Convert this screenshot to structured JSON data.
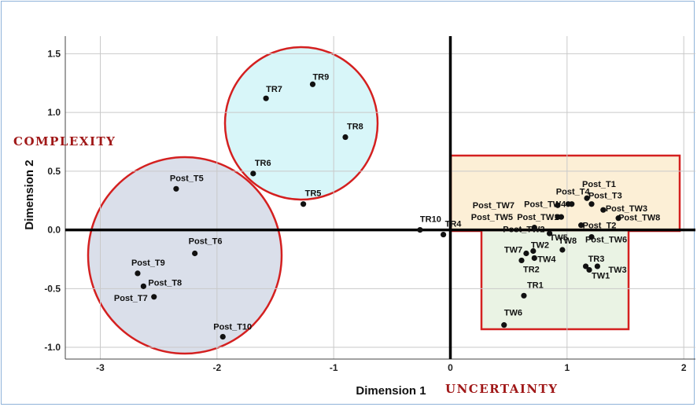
{
  "chart_data": {
    "type": "scatter",
    "title": "",
    "xlabel": "Dimension 1",
    "ylabel": "Dimension 2",
    "xlim": [
      -3.3,
      2.1
    ],
    "ylim": [
      -1.1,
      1.65
    ],
    "x_ticks": [
      "-3",
      "-2",
      "-1",
      "0",
      "1",
      "2"
    ],
    "y_ticks": [
      "1.5",
      "1.0",
      "0.5",
      "0.0",
      "-0.5",
      "-1.0"
    ],
    "x_tick_values": [
      -3,
      -2,
      -1,
      0,
      1,
      2
    ],
    "y_tick_values": [
      1.5,
      1.0,
      0.5,
      0.0,
      -0.5,
      -1.0
    ],
    "grid": true,
    "annotations": {
      "x_axis": "UNCERTAINTY",
      "y_axis": "COMPLEXITY",
      "color": "#a01818"
    },
    "colors": {
      "highlight_outline": "#d42020",
      "circle_cyan_fill": "#d8f6f9",
      "circle_lavender_fill": "#dadfea",
      "rect_orange_fill": "#fcefd6",
      "rect_green_fill": "#eaf3e4"
    },
    "points": [
      {
        "label": "TR9",
        "x": -1.18,
        "y": 1.24
      },
      {
        "label": "TR7",
        "x": -1.58,
        "y": 1.12
      },
      {
        "label": "TR8",
        "x": -0.9,
        "y": 0.79
      },
      {
        "label": "TR6",
        "x": -1.69,
        "y": 0.48
      },
      {
        "label": "TR5",
        "x": -1.26,
        "y": 0.22
      },
      {
        "label": "Post_T5",
        "x": -2.35,
        "y": 0.35
      },
      {
        "label": "Post_T6",
        "x": -2.19,
        "y": -0.2
      },
      {
        "label": "Post_T9",
        "x": -2.68,
        "y": -0.37
      },
      {
        "label": "Post_T8",
        "x": -2.63,
        "y": -0.48
      },
      {
        "label": "Post_T7",
        "x": -2.54,
        "y": -0.57
      },
      {
        "label": "Post_T10",
        "x": -1.95,
        "y": -0.91
      },
      {
        "label": "TR10",
        "x": -0.26,
        "y": 0.0
      },
      {
        "label": "TR4",
        "x": -0.06,
        "y": -0.04
      },
      {
        "label": "Post_T4",
        "x": 1.04,
        "y": 0.22
      },
      {
        "label": "Post_T1",
        "x": 1.17,
        "y": 0.27
      },
      {
        "label": "Post_T3",
        "x": 1.21,
        "y": 0.22
      },
      {
        "label": "Post_TW3",
        "x": 1.31,
        "y": 0.17
      },
      {
        "label": "Post_TW7",
        "x": 0.92,
        "y": 0.21
      },
      {
        "label": "Post_TW4",
        "x": 1.01,
        "y": 0.22
      },
      {
        "label": "Post_TW5",
        "x": 0.92,
        "y": 0.11
      },
      {
        "label": "Post_TW1",
        "x": 0.95,
        "y": 0.11
      },
      {
        "label": "Post_TW8",
        "x": 1.44,
        "y": 0.1
      },
      {
        "label": "Post_T2",
        "x": 1.12,
        "y": 0.04
      },
      {
        "label": "Post_TW2",
        "x": 0.72,
        "y": 0.02
      },
      {
        "label": "Post_TW6",
        "x": 1.21,
        "y": -0.06
      },
      {
        "label": "TW5",
        "x": 0.85,
        "y": -0.03
      },
      {
        "label": "TW7",
        "x": 0.65,
        "y": -0.2
      },
      {
        "label": "TW2",
        "x": 0.71,
        "y": -0.18
      },
      {
        "label": "TW4",
        "x": 0.72,
        "y": -0.24
      },
      {
        "label": "TR2",
        "x": 0.61,
        "y": -0.26
      },
      {
        "label": "TW8",
        "x": 0.96,
        "y": -0.17
      },
      {
        "label": "TR3",
        "x": 1.16,
        "y": -0.31
      },
      {
        "label": "TW3",
        "x": 1.26,
        "y": -0.31
      },
      {
        "label": "TW1",
        "x": 1.19,
        "y": -0.34
      },
      {
        "label": "TR1",
        "x": 0.63,
        "y": -0.56
      },
      {
        "label": "TW6",
        "x": 0.46,
        "y": -0.81
      }
    ]
  }
}
